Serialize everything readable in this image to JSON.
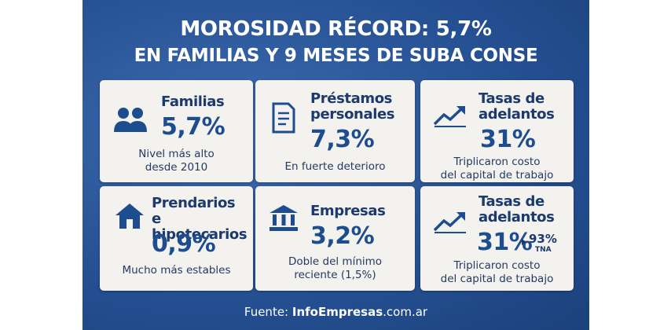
{
  "title": {
    "line1": "MOROSIDAD RÉCORD: 5,7%",
    "line2": "EN FAMILIAS Y 9 MESES DE SUBA CONSE"
  },
  "cards": [
    {
      "heading": [
        "Familias"
      ],
      "value": "5,7%",
      "note": [
        "Nivel más alto",
        "desde 2010"
      ]
    },
    {
      "heading": [
        "Préstamos",
        "personales"
      ],
      "value": "7,3%",
      "note": [
        "En fuerte deterioro"
      ]
    },
    {
      "heading": [
        "Tasas de",
        "adelantos"
      ],
      "value": "31%",
      "note": [
        "Triplicaron costo",
        "del capital de trabajo"
      ]
    },
    {
      "heading": [
        "Prendarios",
        "e hipotecarios"
      ],
      "value": "0,9%",
      "note": [
        "Mucho más estables"
      ]
    },
    {
      "heading": [
        "Empresas"
      ],
      "value": "3,2%",
      "note": [
        "Doble del mínimo",
        "reciente (1,5%)"
      ]
    },
    {
      "heading": [
        "Tasas de",
        "adelantos"
      ],
      "value": "31%",
      "extra": {
        "value": "93%",
        "label": "TNA"
      },
      "note": [
        "Triplicaron costo",
        "del capital de trabajo"
      ]
    }
  ],
  "source": {
    "prefix": "Fuente:",
    "brand": "InfoEmpresas",
    "suffix": ".com.ar"
  }
}
